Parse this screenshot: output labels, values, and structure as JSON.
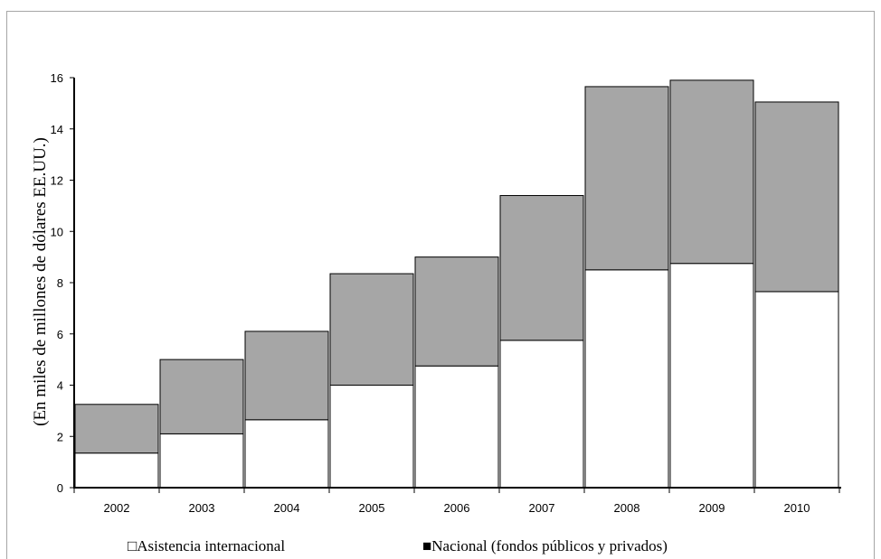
{
  "chart_data": {
    "type": "bar",
    "stacked": true,
    "categories": [
      "2002",
      "2003",
      "2004",
      "2005",
      "2006",
      "2007",
      "2008",
      "2009",
      "2010"
    ],
    "series": [
      {
        "name": "Asistencia internacional",
        "color": "#ffffff",
        "values": [
          1.35,
          2.1,
          2.65,
          4.0,
          4.75,
          5.75,
          8.5,
          8.75,
          7.65
        ]
      },
      {
        "name": "Nacional (fondos públicos y privados)",
        "color": "#a6a6a6",
        "values": [
          1.9,
          2.9,
          3.45,
          4.35,
          4.25,
          5.65,
          7.15,
          7.15,
          7.4
        ]
      }
    ],
    "title": "",
    "xlabel": "",
    "ylabel": "(En miles de millones de dólares EE.UU.)",
    "ylim": [
      0,
      16
    ],
    "yticks": [
      "0",
      "2",
      "4",
      "6",
      "8",
      "10",
      "12",
      "14",
      "16"
    ],
    "grid": false,
    "legend_position": "bottom",
    "legend_markers": [
      "□",
      "■"
    ]
  }
}
